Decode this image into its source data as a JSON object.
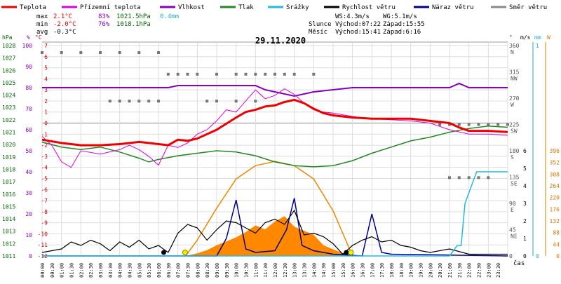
{
  "chart_data": {
    "type": "line",
    "title": "29.11.2020",
    "x_axis_label": "čas",
    "legend": [
      {
        "key": "temperature",
        "label": "Teplota",
        "color": "#ee0000"
      },
      {
        "key": "dewpoint",
        "label": "Přízemní teplota",
        "color": "#dd00dd"
      },
      {
        "key": "humidity",
        "label": "Vlhkost",
        "color": "#8800bb"
      },
      {
        "key": "pressure",
        "label": "Tlak",
        "color": "#228822"
      },
      {
        "key": "precip",
        "label": "Srážky",
        "color": "#22bbdd"
      },
      {
        "key": "wind_speed",
        "label": "Rychlost větru",
        "color": "#000000"
      },
      {
        "key": "wind_gust",
        "label": "Náraz větru",
        "color": "#000088"
      },
      {
        "key": "wind_dir",
        "label": "Směr větru",
        "color": "#888888"
      }
    ],
    "stats": {
      "max_label": "max",
      "min_label": "min",
      "avg_label": "avg",
      "temp_max": "2.1°C",
      "hum_max": "83%",
      "press_max": "1021.5hPa",
      "precip_total": "0.4mm",
      "temp_min": "-2.0°C",
      "hum_min": "76%",
      "press_min": "1018.1hPa",
      "temp_avg": "-0.3°C"
    },
    "info": {
      "ws": "WS:4.3m/s",
      "wg": "WG:5.1m/s",
      "sun_label": "Slunce",
      "moon_label": "Měsíc",
      "sunrise": "Východ:07:22",
      "sunset": "Západ:15:55",
      "moonrise": "Východ:15:41",
      "moonset": "Západ:6:16"
    },
    "axes": {
      "hpa": {
        "unit": "hPa",
        "ticks": [
          "1028",
          "1027",
          "1026",
          "1025",
          "1024",
          "1023",
          "1022",
          "1021",
          "1020",
          "1019",
          "1018",
          "1017",
          "1016",
          "1015",
          "1014",
          "1013",
          "1012",
          "1011"
        ]
      },
      "pct": {
        "unit": "%",
        "ticks": [
          "100",
          "90",
          "80",
          "70",
          "60",
          "50",
          "40",
          "30",
          "20",
          "10",
          "0"
        ]
      },
      "celsius": {
        "unit": "°C",
        "ticks": [
          "7",
          "6",
          "5",
          "4",
          "3",
          "2",
          "1",
          "0",
          "-1",
          "-2",
          "-3",
          "-4",
          "-5",
          "-6",
          "-7",
          "-8",
          "-9",
          "-10",
          "-11",
          "-12"
        ]
      },
      "direction": {
        "unit": "°",
        "ticks": [
          {
            "deg": "360",
            "dir": "N"
          },
          {
            "deg": "315",
            "dir": "NW"
          },
          {
            "deg": "270",
            "dir": "W"
          },
          {
            "deg": "225",
            "dir": "SW"
          },
          {
            "deg": "180",
            "dir": "S"
          },
          {
            "deg": "135",
            "dir": "SE"
          },
          {
            "deg": "90",
            "dir": "E"
          },
          {
            "deg": "45",
            "dir": "NE"
          },
          {
            "deg": "0",
            "dir": ""
          }
        ]
      },
      "ms": {
        "unit": "m/s",
        "ticks": [
          "6",
          "5",
          "4",
          "3",
          "2",
          "1",
          "0"
        ]
      },
      "mm": {
        "unit": "mm",
        "ticks": [
          "1",
          "0"
        ]
      },
      "wm2": {
        "unit": "W",
        "ticks": [
          "396",
          "352",
          "308",
          "264",
          "220",
          "176",
          "132",
          "88",
          "44",
          "0"
        ]
      },
      "time_ticks": [
        "00:00",
        "00:30",
        "01:00",
        "01:30",
        "02:00",
        "02:30",
        "03:00",
        "03:30",
        "04:00",
        "04:30",
        "05:00",
        "05:30",
        "06:00",
        "06:30",
        "07:00",
        "07:30",
        "08:00",
        "08:30",
        "09:00",
        "09:30",
        "10:00",
        "10:30",
        "11:00",
        "11:30",
        "12:00",
        "12:30",
        "13:00",
        "13:30",
        "14:00",
        "14:30",
        "15:00",
        "15:30",
        "16:00",
        "16:30",
        "17:00",
        "17:30",
        "18:00",
        "18:30",
        "19:00",
        "19:30",
        "20:00",
        "20:30",
        "21:00",
        "21:30",
        "22:00",
        "22:30",
        "23:00",
        "23:30"
      ]
    },
    "series": {
      "temperature": [
        [
          0,
          -1.5
        ],
        [
          1,
          -1.8
        ],
        [
          2,
          -2.0
        ],
        [
          3,
          -2.0
        ],
        [
          4,
          -1.9
        ],
        [
          5,
          -1.7
        ],
        [
          5.5,
          -1.8
        ],
        [
          6,
          -1.9
        ],
        [
          6.5,
          -2.0
        ],
        [
          7,
          -1.5
        ],
        [
          7.5,
          -1.6
        ],
        [
          8,
          -1.4
        ],
        [
          9,
          -0.6
        ],
        [
          10,
          0.5
        ],
        [
          10.5,
          1.0
        ],
        [
          11,
          1.2
        ],
        [
          11.5,
          1.5
        ],
        [
          12,
          1.6
        ],
        [
          12.5,
          1.9
        ],
        [
          13,
          2.1
        ],
        [
          13.5,
          1.8
        ],
        [
          14,
          1.3
        ],
        [
          14.5,
          0.9
        ],
        [
          15,
          0.7
        ],
        [
          16,
          0.5
        ],
        [
          17,
          0.4
        ],
        [
          18,
          0.4
        ],
        [
          19,
          0.4
        ],
        [
          20,
          0.2
        ],
        [
          21,
          0.0
        ],
        [
          21.5,
          -0.4
        ],
        [
          22,
          -0.7
        ],
        [
          23,
          -0.7
        ],
        [
          24,
          -0.8
        ]
      ],
      "dewpoint": [
        [
          0,
          -1.2
        ],
        [
          0.5,
          -2.0
        ],
        [
          1,
          -3.5
        ],
        [
          1.5,
          -4.0
        ],
        [
          2,
          -2.5
        ],
        [
          3,
          -2.8
        ],
        [
          4,
          -2.4
        ],
        [
          4.5,
          -2.0
        ],
        [
          5,
          -2.4
        ],
        [
          5.5,
          -3.0
        ],
        [
          6,
          -3.8
        ],
        [
          6.5,
          -2.0
        ],
        [
          7,
          -2.2
        ],
        [
          7.5,
          -1.8
        ],
        [
          8,
          -1.0
        ],
        [
          8.5,
          -0.6
        ],
        [
          9,
          0.2
        ],
        [
          9.5,
          1.2
        ],
        [
          10,
          1.0
        ],
        [
          10.5,
          2.0
        ],
        [
          11,
          3.0
        ],
        [
          11.5,
          2.2
        ],
        [
          12,
          2.5
        ],
        [
          12.5,
          3.1
        ],
        [
          13,
          2.6
        ],
        [
          13.5,
          1.8
        ],
        [
          14,
          1.2
        ],
        [
          14.5,
          1.0
        ],
        [
          15,
          0.9
        ],
        [
          16,
          0.6
        ],
        [
          17,
          0.4
        ],
        [
          18,
          0.3
        ],
        [
          19,
          0.2
        ],
        [
          20,
          0.0
        ],
        [
          21,
          -0.6
        ],
        [
          22,
          -1.0
        ],
        [
          23,
          -1.0
        ],
        [
          24,
          -1.1
        ]
      ],
      "humidity": [
        [
          0,
          80
        ],
        [
          5,
          80
        ],
        [
          6.5,
          80
        ],
        [
          7,
          81
        ],
        [
          8,
          81
        ],
        [
          10,
          81
        ],
        [
          11,
          81
        ],
        [
          11.5,
          79
        ],
        [
          12,
          78
        ],
        [
          13,
          76
        ],
        [
          13.5,
          77
        ],
        [
          14,
          78
        ],
        [
          15,
          79
        ],
        [
          16,
          80
        ],
        [
          17,
          80
        ],
        [
          19,
          80
        ],
        [
          20,
          80
        ],
        [
          21,
          80
        ],
        [
          21.5,
          82
        ],
        [
          22,
          80
        ],
        [
          23,
          80
        ],
        [
          24,
          80
        ]
      ],
      "pressure": [
        [
          0,
          1020.2
        ],
        [
          1,
          1019.8
        ],
        [
          2,
          1019.6
        ],
        [
          3,
          1019.8
        ],
        [
          4,
          1019.4
        ],
        [
          5,
          1018.9
        ],
        [
          5.5,
          1018.6
        ],
        [
          6,
          1018.8
        ],
        [
          7,
          1019.1
        ],
        [
          8,
          1019.3
        ],
        [
          9,
          1019.5
        ],
        [
          10,
          1019.4
        ],
        [
          11,
          1019.1
        ],
        [
          12,
          1018.6
        ],
        [
          13,
          1018.3
        ],
        [
          14,
          1018.2
        ],
        [
          15,
          1018.3
        ],
        [
          16,
          1018.7
        ],
        [
          17,
          1019.3
        ],
        [
          18,
          1019.8
        ],
        [
          19,
          1020.3
        ],
        [
          20,
          1020.6
        ],
        [
          21,
          1021.0
        ],
        [
          22,
          1021.3
        ],
        [
          23,
          1021.5
        ],
        [
          24,
          1021.4
        ]
      ],
      "precip": [
        [
          0,
          0
        ],
        [
          21,
          0
        ],
        [
          21.4,
          0.05
        ],
        [
          21.6,
          0.05
        ],
        [
          21.8,
          0.25
        ],
        [
          22.4,
          0.4
        ],
        [
          24,
          0.4
        ]
      ],
      "wind_speed": [
        [
          0,
          0.2
        ],
        [
          1,
          0.4
        ],
        [
          1.5,
          0.8
        ],
        [
          2,
          0.6
        ],
        [
          2.5,
          0.9
        ],
        [
          3,
          0.7
        ],
        [
          3.5,
          0.3
        ],
        [
          4,
          0.8
        ],
        [
          4.5,
          0.5
        ],
        [
          5,
          0.9
        ],
        [
          5.5,
          0.4
        ],
        [
          6,
          0.6
        ],
        [
          6.5,
          0.2
        ],
        [
          7,
          1.3
        ],
        [
          7.5,
          1.8
        ],
        [
          8,
          1.6
        ],
        [
          8.5,
          0.9
        ],
        [
          9,
          1.5
        ],
        [
          9.5,
          2.0
        ],
        [
          10,
          1.9
        ],
        [
          10.5,
          1.6
        ],
        [
          11,
          1.3
        ],
        [
          11.5,
          1.9
        ],
        [
          12,
          2.1
        ],
        [
          12.5,
          1.8
        ],
        [
          13,
          2.6
        ],
        [
          13.5,
          1.2
        ],
        [
          14,
          1.3
        ],
        [
          14.5,
          1.1
        ],
        [
          15,
          0.7
        ],
        [
          15.5,
          0.1
        ],
        [
          16,
          0.6
        ],
        [
          16.5,
          0.9
        ],
        [
          17,
          1.1
        ],
        [
          17.5,
          0.8
        ],
        [
          18,
          0.9
        ],
        [
          18.5,
          0.6
        ],
        [
          19,
          0.5
        ],
        [
          19.5,
          0.3
        ],
        [
          20,
          0.2
        ],
        [
          21,
          0.4
        ],
        [
          22,
          0.1
        ],
        [
          23,
          0.1
        ],
        [
          24,
          0.1
        ]
      ],
      "wind_gust": [
        [
          0,
          0
        ],
        [
          9,
          0
        ],
        [
          9.5,
          1
        ],
        [
          10,
          3.2
        ],
        [
          10.5,
          0.4
        ],
        [
          11,
          0.2
        ],
        [
          12,
          0.3
        ],
        [
          12.6,
          1.5
        ],
        [
          13,
          3.3
        ],
        [
          13.4,
          0.6
        ],
        [
          14,
          0.3
        ],
        [
          15,
          0.1
        ],
        [
          16.5,
          0
        ],
        [
          17,
          2.4
        ],
        [
          17.5,
          0.2
        ],
        [
          18,
          0.1
        ],
        [
          24,
          0
        ]
      ],
      "solar": [
        [
          7.4,
          0
        ],
        [
          8,
          10
        ],
        [
          8.5,
          22
        ],
        [
          9,
          40
        ],
        [
          9.5,
          55
        ],
        [
          10,
          70
        ],
        [
          10.5,
          90
        ],
        [
          11,
          115
        ],
        [
          11.5,
          100
        ],
        [
          12,
          130
        ],
        [
          12.5,
          150
        ],
        [
          13,
          110
        ],
        [
          13.5,
          95
        ],
        [
          14,
          80
        ],
        [
          14.5,
          40
        ],
        [
          15,
          25
        ],
        [
          15.6,
          8
        ],
        [
          16,
          0
        ]
      ],
      "solar_max": [
        [
          7.4,
          0
        ],
        [
          8,
          60
        ],
        [
          9,
          180
        ],
        [
          10,
          290
        ],
        [
          11,
          340
        ],
        [
          12,
          356
        ],
        [
          13,
          340
        ],
        [
          14,
          290
        ],
        [
          15,
          170
        ],
        [
          16,
          0
        ]
      ],
      "wind_dir": [
        [
          0,
          348
        ],
        [
          1,
          348
        ],
        [
          2,
          348
        ],
        [
          3,
          348
        ],
        [
          4,
          348
        ],
        [
          5,
          348
        ],
        [
          6,
          348
        ],
        [
          6.5,
          311
        ],
        [
          7,
          311
        ],
        [
          7.5,
          311
        ],
        [
          8,
          311
        ],
        [
          9,
          311
        ],
        [
          10,
          311
        ],
        [
          10.5,
          311
        ],
        [
          11,
          311
        ],
        [
          11.5,
          311
        ],
        [
          12,
          311
        ],
        [
          12.5,
          311
        ],
        [
          13,
          311
        ],
        [
          14,
          311
        ],
        [
          3.5,
          265
        ],
        [
          4,
          265
        ],
        [
          4.5,
          265
        ],
        [
          5,
          265
        ],
        [
          5.5,
          265
        ],
        [
          6,
          265
        ],
        [
          8.5,
          265
        ],
        [
          9,
          265
        ],
        [
          10,
          265
        ],
        [
          11,
          265
        ],
        [
          20.5,
          225
        ],
        [
          21,
          225
        ],
        [
          21.5,
          225
        ],
        [
          22,
          225
        ],
        [
          22.5,
          225
        ],
        [
          23,
          225
        ],
        [
          23.5,
          225
        ],
        [
          24,
          225
        ],
        [
          21,
          134
        ],
        [
          21.5,
          134
        ],
        [
          22,
          134
        ],
        [
          22.5,
          134
        ],
        [
          23,
          134
        ]
      ]
    }
  }
}
